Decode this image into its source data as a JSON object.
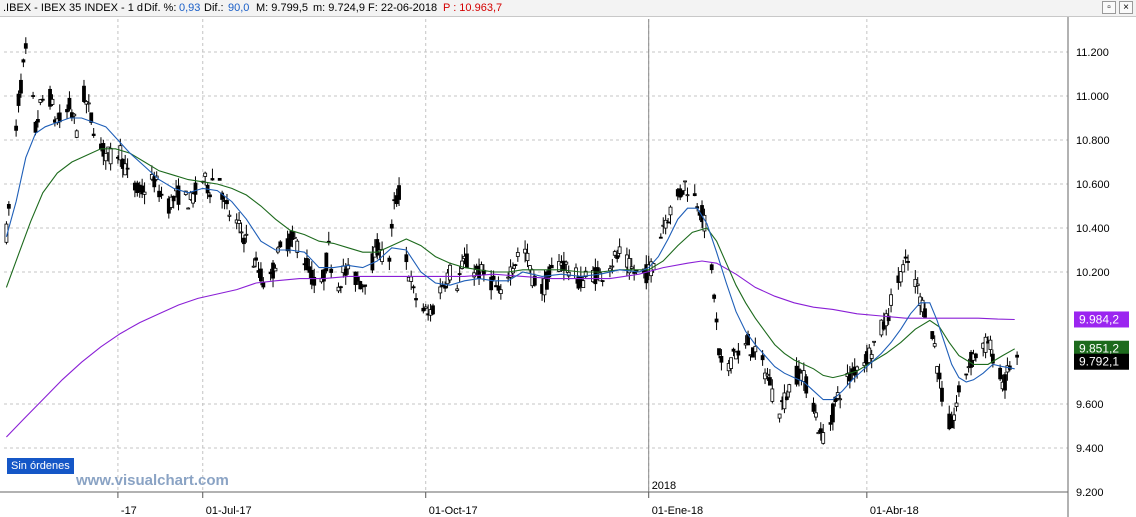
{
  "header": {
    "symbol": ".IBEX - IBEX 35 INDEX - 1 d",
    "dif_pct_label": "Dif. %:",
    "dif_pct_value": "0,93",
    "dif_label": "Dif.:",
    "dif_value": "90,0",
    "max_label": "M: 9.799,5",
    "min_label": "m: 9.724,9",
    "date_label": "F: 22-06-2018",
    "prev_label": "P : 10.963,7"
  },
  "window_controls": {
    "restore": "▫",
    "close": "×"
  },
  "colors": {
    "up": "#ffffff",
    "down": "#000000",
    "ma_short": "#1f5fb8",
    "ma_mid": "#1d6a1d",
    "ma_long": "#8a1fd6",
    "grid": "#c4c4c4",
    "badge_long": "#9b25f0",
    "badge_mid": "#1d6a1d",
    "badge_price": "#000000"
  },
  "order_badge": "Sin órdenes",
  "watermark": "www.visualchart.com",
  "chart_data": {
    "type": "candlestick",
    "y_ticks": [
      "11.200",
      "11.000",
      "10.800",
      "10.600",
      "10.400",
      "10.200",
      "9.600",
      "9.400",
      "9.200"
    ],
    "y_tick_values": [
      11200,
      11000,
      10800,
      10600,
      10400,
      10200,
      9600,
      9400,
      9200
    ],
    "ylim": [
      9200,
      11350
    ],
    "x_labels": [
      {
        "label": "-17",
        "day": -35
      },
      {
        "label": "01-Jul-17",
        "day": 0
      },
      {
        "label": "01-Oct-17",
        "day": 92
      },
      {
        "label": "01-Ene-18",
        "day": 184
      },
      {
        "label": "01-Abr-18",
        "day": 274
      }
    ],
    "year_marker": {
      "label": "2018",
      "day": 184
    },
    "xlim": [
      -82,
      357
    ],
    "last_day": 356,
    "price_path": [
      [
        -81,
        10380
      ],
      [
        -78,
        10700
      ],
      [
        -76,
        10980
      ],
      [
        -73,
        11200
      ],
      [
        -71,
        11080
      ],
      [
        -69,
        10850
      ],
      [
        -67,
        10950
      ],
      [
        -64,
        11040
      ],
      [
        -61,
        10900
      ],
      [
        -58,
        10880
      ],
      [
        -55,
        10950
      ],
      [
        -52,
        10850
      ],
      [
        -49,
        11000
      ],
      [
        -46,
        10900
      ],
      [
        -42,
        10760
      ],
      [
        -38,
        10720
      ],
      [
        -34,
        10750
      ],
      [
        -30,
        10600
      ],
      [
        -26,
        10560
      ],
      [
        -20,
        10620
      ],
      [
        -15,
        10500
      ],
      [
        -10,
        10550
      ],
      [
        -5,
        10520
      ],
      [
        0,
        10620
      ],
      [
        3,
        10580
      ],
      [
        6,
        10700
      ],
      [
        9,
        10500
      ],
      [
        12,
        10450
      ],
      [
        15,
        10400
      ],
      [
        18,
        10350
      ],
      [
        21,
        10250
      ],
      [
        24,
        10180
      ],
      [
        27,
        10120
      ],
      [
        30,
        10250
      ],
      [
        33,
        10320
      ],
      [
        36,
        10350
      ],
      [
        39,
        10330
      ],
      [
        42,
        10260
      ],
      [
        45,
        10180
      ],
      [
        48,
        10080
      ],
      [
        52,
        10300
      ],
      [
        55,
        10120
      ],
      [
        58,
        10200
      ],
      [
        62,
        10180
      ],
      [
        66,
        10150
      ],
      [
        70,
        10250
      ],
      [
        73,
        10330
      ],
      [
        76,
        10150
      ],
      [
        79,
        10500
      ],
      [
        81,
        10560
      ],
      [
        84,
        10250
      ],
      [
        87,
        10100
      ],
      [
        90,
        10050
      ],
      [
        93,
        10000
      ],
      [
        96,
        10060
      ],
      [
        99,
        10150
      ],
      [
        102,
        10200
      ],
      [
        105,
        10150
      ],
      [
        108,
        10250
      ],
      [
        111,
        10220
      ],
      [
        114,
        10200
      ],
      [
        117,
        10180
      ],
      [
        120,
        10150
      ],
      [
        123,
        10080
      ],
      [
        126,
        10200
      ],
      [
        129,
        10250
      ],
      [
        132,
        10330
      ],
      [
        136,
        10180
      ],
      [
        140,
        10120
      ],
      [
        144,
        10200
      ],
      [
        148,
        10250
      ],
      [
        152,
        10200
      ],
      [
        156,
        10150
      ],
      [
        160,
        10200
      ],
      [
        164,
        10180
      ],
      [
        168,
        10240
      ],
      [
        172,
        10280
      ],
      [
        176,
        10220
      ],
      [
        180,
        10180
      ],
      [
        184,
        10200
      ],
      [
        187,
        10270
      ],
      [
        190,
        10420
      ],
      [
        193,
        10480
      ],
      [
        196,
        10540
      ],
      [
        199,
        10600
      ],
      [
        202,
        10560
      ],
      [
        205,
        10500
      ],
      [
        208,
        10380
      ],
      [
        211,
        10100
      ],
      [
        213,
        9820
      ],
      [
        215,
        9730
      ],
      [
        217,
        9760
      ],
      [
        219,
        9850
      ],
      [
        222,
        9800
      ],
      [
        225,
        9880
      ],
      [
        228,
        9820
      ],
      [
        231,
        9780
      ],
      [
        234,
        9700
      ],
      [
        237,
        9560
      ],
      [
        240,
        9620
      ],
      [
        243,
        9700
      ],
      [
        246,
        9750
      ],
      [
        249,
        9690
      ],
      [
        252,
        9600
      ],
      [
        255,
        9450
      ],
      [
        258,
        9480
      ],
      [
        261,
        9600
      ],
      [
        264,
        9690
      ],
      [
        267,
        9720
      ],
      [
        270,
        9780
      ],
      [
        273,
        9800
      ],
      [
        276,
        9850
      ],
      [
        279,
        9920
      ],
      [
        282,
        9980
      ],
      [
        285,
        10100
      ],
      [
        288,
        10200
      ],
      [
        291,
        10240
      ],
      [
        294,
        10150
      ],
      [
        297,
        10050
      ],
      [
        300,
        10010
      ],
      [
        303,
        9780
      ],
      [
        305,
        9640
      ],
      [
        307,
        9520
      ],
      [
        309,
        9500
      ],
      [
        311,
        9600
      ],
      [
        314,
        9720
      ],
      [
        316,
        9780
      ],
      [
        318,
        9820
      ],
      [
        321,
        9840
      ],
      [
        324,
        9880
      ],
      [
        327,
        9800
      ],
      [
        329,
        9720
      ],
      [
        331,
        9690
      ],
      [
        333,
        9780
      ],
      [
        335,
        9800
      ]
    ],
    "ma_short": [
      [
        -81,
        10360
      ],
      [
        -77,
        10520
      ],
      [
        -73,
        10720
      ],
      [
        -69,
        10830
      ],
      [
        -65,
        10860
      ],
      [
        -60,
        10880
      ],
      [
        -55,
        10900
      ],
      [
        -50,
        10900
      ],
      [
        -45,
        10880
      ],
      [
        -40,
        10860
      ],
      [
        -35,
        10800
      ],
      [
        -30,
        10740
      ],
      [
        -24,
        10680
      ],
      [
        -18,
        10620
      ],
      [
        -12,
        10580
      ],
      [
        -6,
        10560
      ],
      [
        0,
        10580
      ],
      [
        6,
        10570
      ],
      [
        12,
        10520
      ],
      [
        18,
        10440
      ],
      [
        24,
        10340
      ],
      [
        30,
        10300
      ],
      [
        36,
        10300
      ],
      [
        42,
        10290
      ],
      [
        48,
        10220
      ],
      [
        54,
        10220
      ],
      [
        60,
        10230
      ],
      [
        66,
        10220
      ],
      [
        72,
        10250
      ],
      [
        78,
        10310
      ],
      [
        84,
        10300
      ],
      [
        90,
        10200
      ],
      [
        96,
        10150
      ],
      [
        102,
        10140
      ],
      [
        108,
        10160
      ],
      [
        114,
        10170
      ],
      [
        120,
        10160
      ],
      [
        126,
        10160
      ],
      [
        132,
        10200
      ],
      [
        140,
        10180
      ],
      [
        148,
        10190
      ],
      [
        156,
        10180
      ],
      [
        164,
        10190
      ],
      [
        172,
        10210
      ],
      [
        180,
        10200
      ],
      [
        184,
        10220
      ],
      [
        188,
        10270
      ],
      [
        192,
        10350
      ],
      [
        196,
        10440
      ],
      [
        200,
        10490
      ],
      [
        204,
        10490
      ],
      [
        208,
        10420
      ],
      [
        212,
        10290
      ],
      [
        216,
        10150
      ],
      [
        220,
        10020
      ],
      [
        224,
        9930
      ],
      [
        228,
        9870
      ],
      [
        232,
        9820
      ],
      [
        236,
        9770
      ],
      [
        240,
        9740
      ],
      [
        244,
        9720
      ],
      [
        248,
        9700
      ],
      [
        252,
        9660
      ],
      [
        256,
        9620
      ],
      [
        260,
        9620
      ],
      [
        264,
        9660
      ],
      [
        268,
        9710
      ],
      [
        272,
        9750
      ],
      [
        276,
        9790
      ],
      [
        280,
        9830
      ],
      [
        284,
        9880
      ],
      [
        288,
        9940
      ],
      [
        292,
        10010
      ],
      [
        296,
        10060
      ],
      [
        300,
        10060
      ],
      [
        303,
        9980
      ],
      [
        306,
        9880
      ],
      [
        309,
        9780
      ],
      [
        312,
        9720
      ],
      [
        315,
        9700
      ],
      [
        318,
        9710
      ],
      [
        322,
        9740
      ],
      [
        326,
        9780
      ],
      [
        330,
        9770
      ],
      [
        335,
        9760
      ]
    ],
    "ma_mid": [
      [
        -81,
        10130
      ],
      [
        -76,
        10280
      ],
      [
        -71,
        10430
      ],
      [
        -66,
        10560
      ],
      [
        -60,
        10650
      ],
      [
        -54,
        10700
      ],
      [
        -48,
        10730
      ],
      [
        -42,
        10760
      ],
      [
        -36,
        10760
      ],
      [
        -30,
        10740
      ],
      [
        -24,
        10700
      ],
      [
        -18,
        10660
      ],
      [
        -12,
        10640
      ],
      [
        -6,
        10620
      ],
      [
        0,
        10610
      ],
      [
        6,
        10600
      ],
      [
        12,
        10580
      ],
      [
        18,
        10550
      ],
      [
        24,
        10500
      ],
      [
        30,
        10440
      ],
      [
        36,
        10390
      ],
      [
        42,
        10370
      ],
      [
        48,
        10340
      ],
      [
        54,
        10330
      ],
      [
        60,
        10310
      ],
      [
        66,
        10290
      ],
      [
        72,
        10290
      ],
      [
        78,
        10320
      ],
      [
        84,
        10350
      ],
      [
        90,
        10320
      ],
      [
        96,
        10270
      ],
      [
        102,
        10240
      ],
      [
        108,
        10220
      ],
      [
        114,
        10210
      ],
      [
        120,
        10200
      ],
      [
        126,
        10200
      ],
      [
        132,
        10210
      ],
      [
        140,
        10210
      ],
      [
        148,
        10210
      ],
      [
        156,
        10200
      ],
      [
        164,
        10200
      ],
      [
        172,
        10210
      ],
      [
        180,
        10210
      ],
      [
        184,
        10210
      ],
      [
        190,
        10250
      ],
      [
        196,
        10320
      ],
      [
        202,
        10380
      ],
      [
        208,
        10400
      ],
      [
        212,
        10340
      ],
      [
        216,
        10240
      ],
      [
        220,
        10140
      ],
      [
        224,
        10060
      ],
      [
        228,
        9990
      ],
      [
        232,
        9930
      ],
      [
        236,
        9870
      ],
      [
        240,
        9830
      ],
      [
        244,
        9800
      ],
      [
        248,
        9780
      ],
      [
        252,
        9760
      ],
      [
        256,
        9730
      ],
      [
        260,
        9720
      ],
      [
        264,
        9730
      ],
      [
        270,
        9750
      ],
      [
        276,
        9790
      ],
      [
        282,
        9830
      ],
      [
        288,
        9880
      ],
      [
        294,
        9940
      ],
      [
        300,
        9980
      ],
      [
        304,
        9950
      ],
      [
        308,
        9880
      ],
      [
        312,
        9820
      ],
      [
        318,
        9780
      ],
      [
        324,
        9780
      ],
      [
        330,
        9820
      ],
      [
        335,
        9851
      ]
    ],
    "ma_long": [
      [
        -81,
        9450
      ],
      [
        -74,
        9530
      ],
      [
        -66,
        9620
      ],
      [
        -58,
        9710
      ],
      [
        -50,
        9790
      ],
      [
        -42,
        9860
      ],
      [
        -34,
        9920
      ],
      [
        -26,
        9970
      ],
      [
        -18,
        10010
      ],
      [
        -10,
        10050
      ],
      [
        -2,
        10080
      ],
      [
        6,
        10100
      ],
      [
        14,
        10120
      ],
      [
        22,
        10150
      ],
      [
        30,
        10160
      ],
      [
        40,
        10170
      ],
      [
        50,
        10170
      ],
      [
        60,
        10180
      ],
      [
        72,
        10180
      ],
      [
        84,
        10180
      ],
      [
        96,
        10180
      ],
      [
        108,
        10180
      ],
      [
        120,
        10190
      ],
      [
        132,
        10180
      ],
      [
        144,
        10170
      ],
      [
        156,
        10170
      ],
      [
        168,
        10170
      ],
      [
        180,
        10190
      ],
      [
        190,
        10220
      ],
      [
        200,
        10240
      ],
      [
        206,
        10250
      ],
      [
        212,
        10240
      ],
      [
        220,
        10190
      ],
      [
        228,
        10130
      ],
      [
        236,
        10090
      ],
      [
        244,
        10060
      ],
      [
        252,
        10040
      ],
      [
        260,
        10030
      ],
      [
        270,
        10010
      ],
      [
        280,
        10000
      ],
      [
        290,
        9990
      ],
      [
        300,
        9990
      ],
      [
        310,
        9990
      ],
      [
        320,
        9990
      ],
      [
        328,
        9986
      ],
      [
        335,
        9984
      ]
    ],
    "last_values": [
      {
        "series": "ma_long",
        "value": 9984.2,
        "label": "9.984,2"
      },
      {
        "series": "ma_mid",
        "value": 9851.2,
        "label": "9.851,2"
      },
      {
        "series": "price",
        "value": 9792.1,
        "label": "9.792,1"
      }
    ],
    "grid": true
  }
}
